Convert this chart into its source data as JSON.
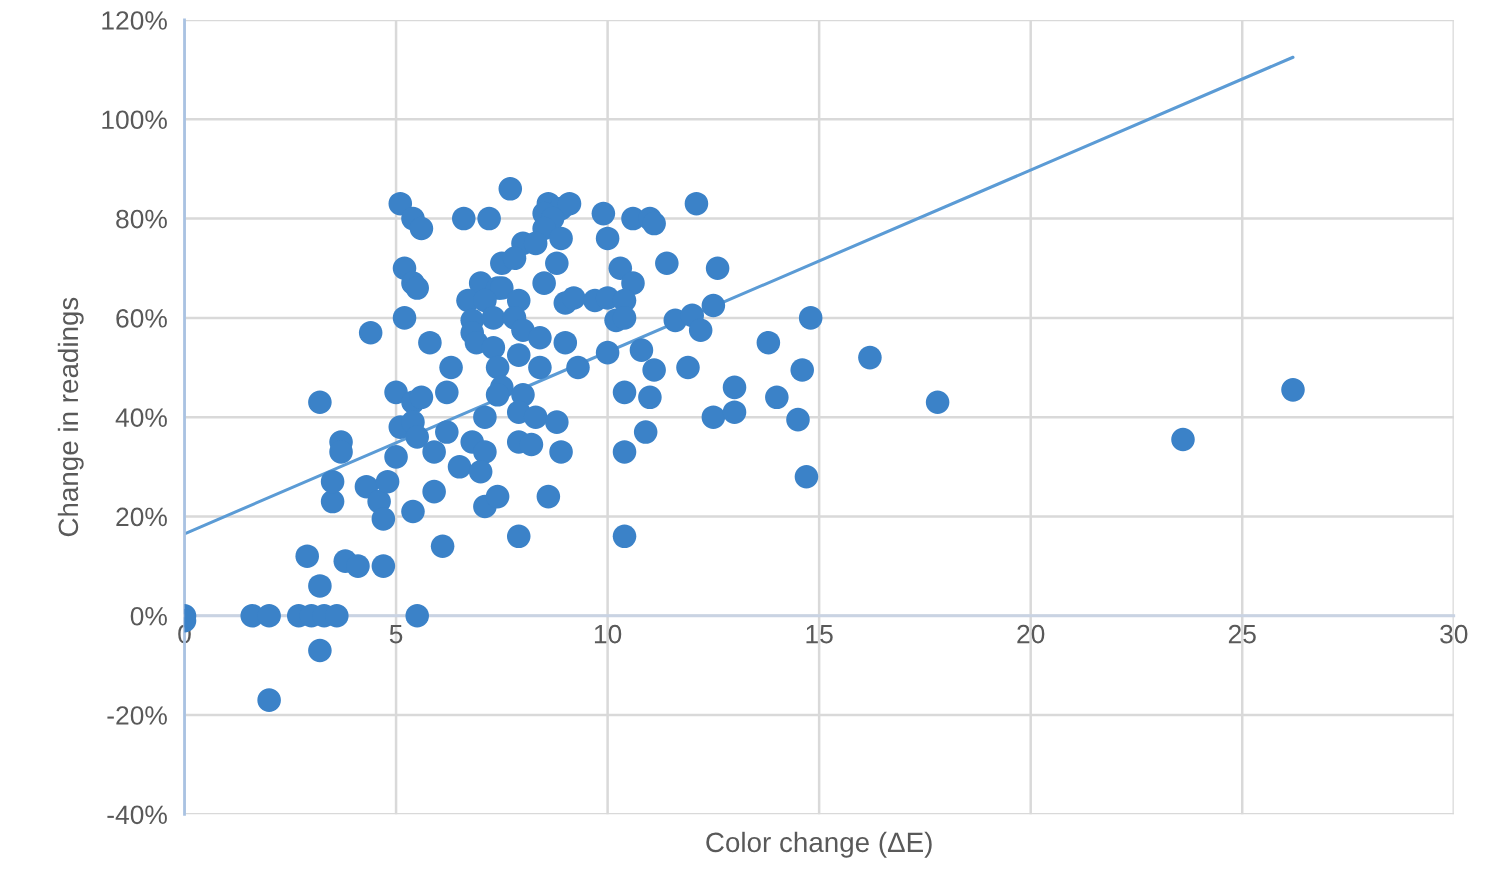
{
  "chart_data": {
    "type": "scatter",
    "xlabel": "Color change (ΔE)",
    "ylabel": "Change in readings",
    "xlim": [
      0,
      30
    ],
    "ylim": [
      -40,
      120
    ],
    "xticks": [
      0,
      5,
      10,
      15,
      20,
      25,
      30
    ],
    "yticks": [
      {
        "value": -40,
        "label": "-40%"
      },
      {
        "value": -20,
        "label": "-20%"
      },
      {
        "value": 0,
        "label": "0%"
      },
      {
        "value": 20,
        "label": "20%"
      },
      {
        "value": 40,
        "label": "40%"
      },
      {
        "value": 60,
        "label": "60%"
      },
      {
        "value": 80,
        "label": "80%"
      },
      {
        "value": 100,
        "label": "100%"
      },
      {
        "value": 120,
        "label": "120%"
      }
    ],
    "grid": true,
    "series": [
      {
        "color": "#3b82c8",
        "marker": "circle",
        "x": [
          0,
          0,
          1.6,
          2.0,
          2.0,
          2.7,
          3.0,
          3.3,
          3.6,
          3.2,
          5.5,
          2.9,
          3.2,
          3.8,
          4.1,
          4.7,
          6.1,
          3.5,
          3.5,
          3.7,
          3.7,
          3.2,
          4.4,
          4.3,
          4.6,
          4.7,
          4.8,
          5.4,
          5.9,
          5.0,
          5.1,
          5.4,
          5.6,
          5.4,
          5.5,
          5.2,
          5.2,
          5.4,
          5.5,
          5.1,
          5.4,
          5.6,
          5.8,
          6.2,
          6.3,
          6.2,
          5.9,
          6.6,
          7.2,
          7.7,
          8.6,
          8.9,
          9.1,
          8.5,
          8.7,
          8.5,
          8.9,
          8.0,
          8.3,
          9.9,
          10.0,
          10.6,
          11.0,
          11.1,
          12.1,
          7.5,
          7.8,
          8.8,
          11.4,
          12.6,
          10.3,
          10.6,
          7.0,
          7.4,
          7.5,
          6.7,
          7.1,
          7.9,
          8.5,
          9.0,
          9.2,
          9.7,
          10.0,
          10.4,
          10.2,
          10.4,
          11.6,
          12.0,
          12.5,
          12.2,
          6.8,
          7.3,
          7.8,
          6.8,
          6.9,
          7.3,
          8.0,
          8.4,
          9.0,
          10.0,
          10.8,
          11.1,
          11.9,
          7.9,
          8.4,
          9.3,
          7.4,
          7.5,
          7.4,
          8.0,
          7.9,
          8.3,
          8.8,
          7.1,
          10.4,
          11.0,
          10.9,
          10.4,
          8.9,
          7.9,
          8.2,
          12.5,
          13.0,
          13.0,
          6.8,
          7.1,
          6.5,
          7.0,
          5.0,
          7.1,
          7.4,
          8.6,
          7.9,
          10.4,
          14.8,
          13.8,
          14.6,
          14.0,
          14.5,
          14.7,
          16.2,
          17.8,
          23.6,
          26.2
        ],
        "values": [
          0,
          -1,
          0,
          0,
          -17,
          0,
          0,
          0,
          0,
          -7,
          0,
          12,
          6,
          11,
          10,
          10,
          14,
          23,
          27,
          35,
          33,
          43,
          57,
          26,
          23,
          19.5,
          27,
          21,
          25,
          45,
          38,
          43,
          44,
          39,
          36,
          60,
          70,
          67,
          66,
          83,
          80,
          78,
          55,
          45,
          50,
          37,
          33,
          80,
          80,
          86,
          83,
          82,
          83,
          81,
          80,
          78,
          76,
          75,
          75,
          81,
          76,
          80,
          80,
          79,
          83,
          71,
          72,
          71,
          71,
          70,
          70,
          67,
          67,
          66,
          66,
          63.5,
          63.5,
          63.5,
          67,
          63,
          64,
          63.5,
          64,
          63.5,
          59.5,
          60,
          59.5,
          60.5,
          62.5,
          57.5,
          59.5,
          60,
          60,
          57,
          55,
          54,
          57.5,
          56,
          55,
          53,
          53.5,
          49.5,
          50,
          52.5,
          50,
          50,
          50,
          46,
          44.5,
          44.5,
          41,
          40,
          39,
          40,
          45,
          44,
          37,
          33,
          33,
          35,
          34.5,
          40,
          41,
          46,
          35,
          33,
          30,
          29,
          32,
          22,
          24,
          24,
          16,
          16,
          60,
          55,
          49.5,
          44,
          39.5,
          28,
          52,
          43,
          35.5,
          45.5
        ]
      },
      {
        "type": "line",
        "color": "#5b9bd5",
        "x": [
          0,
          26.2
        ],
        "values": [
          16.5,
          112.5
        ]
      }
    ]
  }
}
